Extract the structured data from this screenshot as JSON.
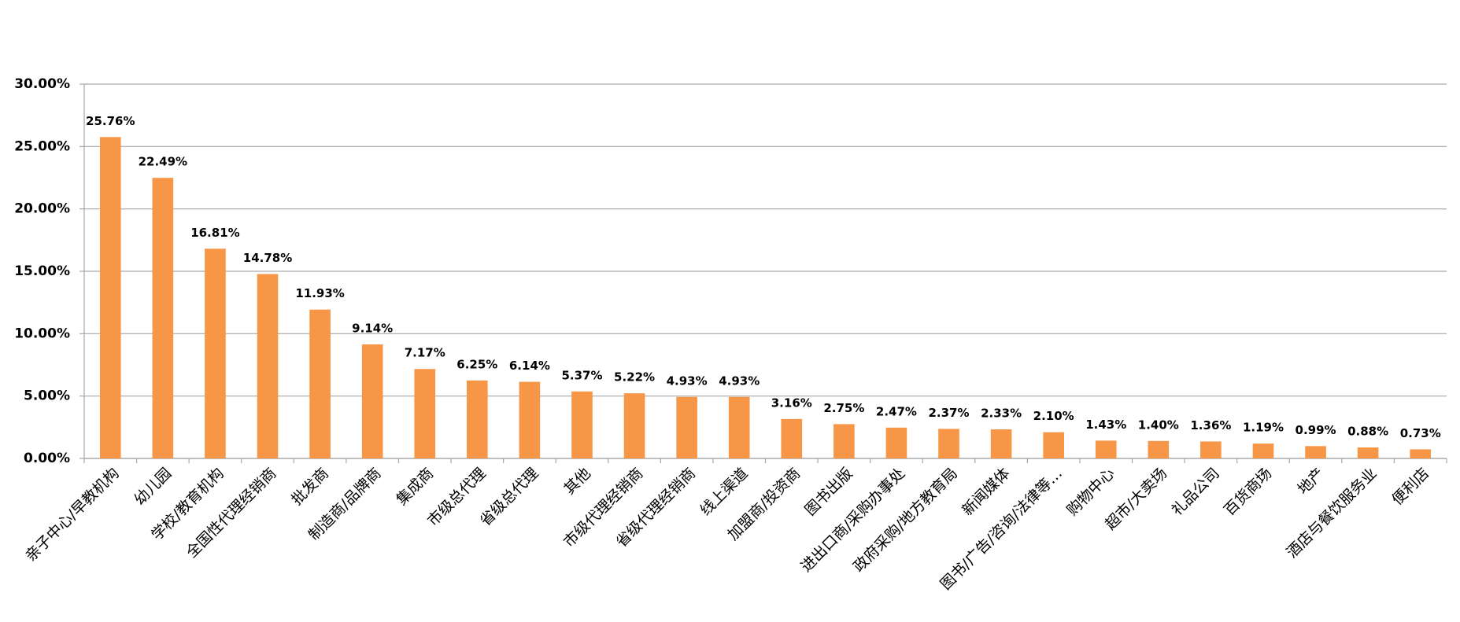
{
  "chart_data": {
    "type": "bar",
    "categories": [
      "亲子中心/早教机构",
      "幼儿园",
      "学校/教育机构",
      "全国性代理经销商",
      "批发商",
      "制造商/品牌商",
      "集成商",
      "市级总代理",
      "省级总代理",
      "其他",
      "市级代理经销商",
      "省级代理经销商",
      "线上渠道",
      "加盟商/投资商",
      "图书出版",
      "进出口商/采购办事处",
      "政府采购/地方教育局",
      "新闻媒体",
      "图书/广告/咨询/法律等…",
      "购物中心",
      "超市/大卖场",
      "礼品公司",
      "百货商场",
      "地产",
      "酒店与餐饮服务业",
      "便利店"
    ],
    "values": [
      25.76,
      22.49,
      16.81,
      14.78,
      11.93,
      9.14,
      7.17,
      6.25,
      6.14,
      5.37,
      5.22,
      4.93,
      4.93,
      3.16,
      2.75,
      2.47,
      2.37,
      2.33,
      2.1,
      1.43,
      1.4,
      1.36,
      1.19,
      0.99,
      0.88,
      0.73
    ],
    "value_labels": [
      "25.76%",
      "22.49%",
      "16.81%",
      "14.78%",
      "11.93%",
      "9.14%",
      "7.17%",
      "6.25%",
      "6.14%",
      "5.37%",
      "5.22%",
      "4.93%",
      "4.93%",
      "3.16%",
      "2.75%",
      "2.47%",
      "2.37%",
      "2.33%",
      "2.10%",
      "1.43%",
      "1.40%",
      "1.36%",
      "1.19%",
      "0.99%",
      "0.88%",
      "0.73%"
    ],
    "color": "#f79646",
    "ylim": [
      0,
      30
    ],
    "yticks": [
      {
        "value": 0,
        "label": "0.00%"
      },
      {
        "value": 5,
        "label": "5.00%"
      },
      {
        "value": 10,
        "label": "10.00%"
      },
      {
        "value": 15,
        "label": "15.00%"
      },
      {
        "value": 20,
        "label": "20.00%"
      },
      {
        "value": 25,
        "label": "25.00%"
      },
      {
        "value": 30,
        "label": "30.00%"
      }
    ],
    "grid": true
  }
}
